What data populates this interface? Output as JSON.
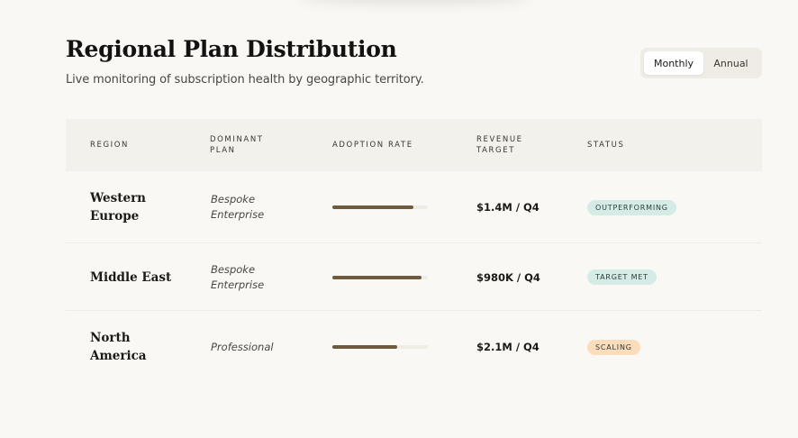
{
  "header": {
    "title": "Regional Plan Distribution",
    "subtitle": "Live monitoring of subscription health by geographic territory."
  },
  "toggle": {
    "options": [
      {
        "label": "Monthly",
        "active": true
      },
      {
        "label": "Annual",
        "active": false
      }
    ]
  },
  "table": {
    "columns": [
      "Region",
      "Dominant Plan",
      "Adoption Rate",
      "Revenue Target",
      "Status"
    ],
    "rows": [
      {
        "region": "Western Europe",
        "plan": "Bespoke Enterprise",
        "adoption": 0.85,
        "target": "$1.4M / Q4",
        "status": "Outperforming",
        "status_color": "#d5ebe5"
      },
      {
        "region": "Middle East",
        "plan": "Bespoke Enterprise",
        "adoption": 0.93,
        "target": "$980K / Q4",
        "status": "Target Met",
        "status_color": "#d5ebe5"
      },
      {
        "region": "North America",
        "plan": "Professional",
        "adoption": 0.68,
        "target": "$2.1M / Q4",
        "status": "Scaling",
        "status_color": "#fbdcbb"
      }
    ]
  },
  "colors": {
    "accent_bar": "#6e5a3c",
    "background": "#faf8f4"
  }
}
